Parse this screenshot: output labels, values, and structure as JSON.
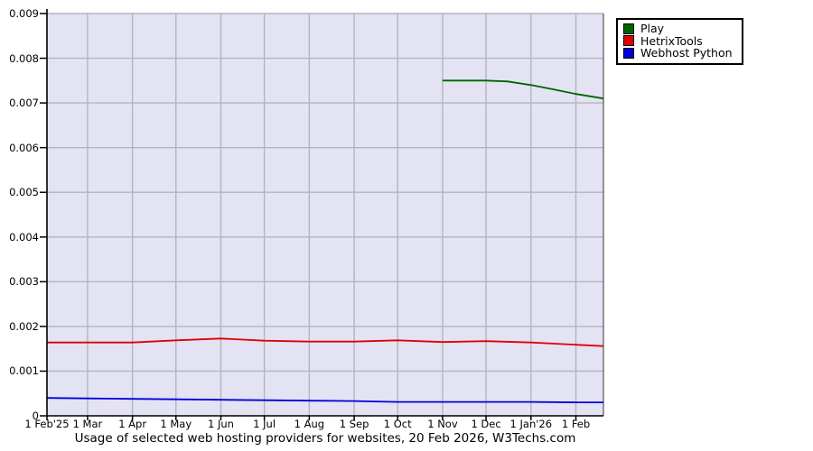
{
  "colors": {
    "plot_bg": "#e3e3f3",
    "grid": "#b4b4bc",
    "axis": "#000000",
    "frame_right": "#333333"
  },
  "chart_data": {
    "type": "line",
    "title": "Usage of selected web hosting providers for websites, 20 Feb 2026, W3Techs.com",
    "xlabel": "",
    "ylabel": "",
    "x_unit": "days since 1 Feb 2025",
    "xlim": [
      0,
      384
    ],
    "ylim": [
      0,
      0.009
    ],
    "grid": true,
    "legend_position": "top-right",
    "y_ticks": [
      0,
      0.001,
      0.002,
      0.003,
      0.004,
      0.005,
      0.006,
      0.007,
      0.008,
      0.009
    ],
    "x_ticks": [
      {
        "day": 0,
        "label": "1 Feb'25"
      },
      {
        "day": 28,
        "label": "1 Mar"
      },
      {
        "day": 59,
        "label": "1 Apr"
      },
      {
        "day": 89,
        "label": "1 May"
      },
      {
        "day": 120,
        "label": "1 Jun"
      },
      {
        "day": 150,
        "label": "1 Jul"
      },
      {
        "day": 181,
        "label": "1 Aug"
      },
      {
        "day": 212,
        "label": "1 Sep"
      },
      {
        "day": 242,
        "label": "1 Oct"
      },
      {
        "day": 273,
        "label": "1 Nov"
      },
      {
        "day": 303,
        "label": "1 Dec"
      },
      {
        "day": 334,
        "label": "1 Jan'26"
      },
      {
        "day": 365,
        "label": "1 Feb"
      }
    ],
    "series": [
      {
        "name": "Play",
        "color": "#006400",
        "x": [
          273,
          303,
          318,
          334,
          350,
          365,
          384
        ],
        "values": [
          0.0075,
          0.0075,
          0.00748,
          0.0074,
          0.0073,
          0.0072,
          0.0071
        ]
      },
      {
        "name": "HetrixTools",
        "color": "#e00000",
        "x": [
          0,
          28,
          59,
          89,
          120,
          150,
          181,
          212,
          242,
          273,
          303,
          334,
          365,
          384
        ],
        "values": [
          0.00164,
          0.00164,
          0.00164,
          0.00169,
          0.00173,
          0.00168,
          0.00166,
          0.00166,
          0.00169,
          0.00165,
          0.00167,
          0.00164,
          0.00159,
          0.00156
        ]
      },
      {
        "name": "Webhost Python",
        "color": "#0000dd",
        "x": [
          0,
          28,
          59,
          89,
          120,
          150,
          181,
          212,
          242,
          273,
          303,
          334,
          365,
          384
        ],
        "values": [
          0.0004,
          0.00039,
          0.00038,
          0.00037,
          0.00036,
          0.00035,
          0.00034,
          0.00033,
          0.00031,
          0.00031,
          0.00031,
          0.00031,
          0.0003,
          0.0003
        ]
      }
    ]
  }
}
